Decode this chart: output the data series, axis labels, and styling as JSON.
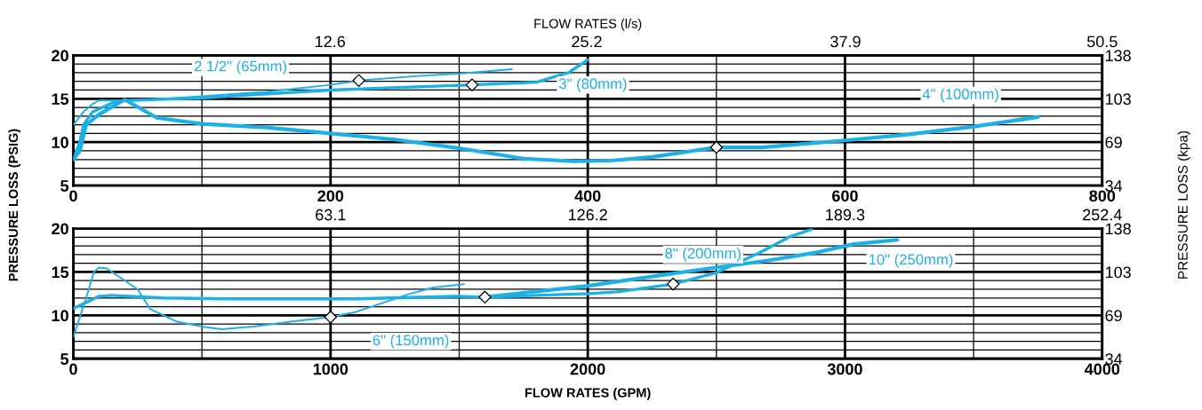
{
  "chart_data": [
    {
      "type": "line",
      "ylabel": "PRESSURE LOSS (PSIG)",
      "x2label": "FLOW RATES (l/s)",
      "grid": true,
      "legend": false,
      "marker": "none",
      "xlim": [
        0,
        800
      ],
      "xticks": [
        0,
        {
          "value": 100,
          "label": null
        },
        200,
        {
          "value": 300,
          "label": null
        },
        400,
        {
          "value": 500,
          "label": null
        },
        600,
        {
          "value": 700,
          "label": null
        },
        800
      ],
      "ylim": [
        5,
        20
      ],
      "yticks": [
        5,
        {
          "value": 6,
          "label": null
        },
        {
          "value": 7,
          "label": null
        },
        {
          "value": 8,
          "label": null
        },
        {
          "value": 9,
          "label": null
        },
        10,
        {
          "value": 11,
          "label": null
        },
        {
          "value": 12,
          "label": null
        },
        {
          "value": 13,
          "label": null
        },
        {
          "value": 14,
          "label": null
        },
        15,
        {
          "value": 16,
          "label": null
        },
        {
          "value": 17,
          "label": null
        },
        {
          "value": 18,
          "label": null
        },
        {
          "value": 19,
          "label": null
        },
        20
      ],
      "x2lim": [
        0,
        50.5
      ],
      "x2ticks": [
        12.6,
        25.2,
        37.9,
        50.5
      ],
      "y2lim": [
        34.5,
        137.9
      ],
      "y2ticks": [
        {
          "value": 34.5,
          "label": "34"
        },
        69,
        {
          "value": 103.4,
          "label": "103"
        },
        {
          "value": 137.9,
          "label": "138"
        }
      ],
      "series": [
        {
          "name": "2 1/2\" (65mm)",
          "color": "#1ab0e8",
          "x": [
            0,
            8,
            15,
            20,
            30,
            60,
            100,
            150,
            200,
            222,
            266,
            300,
            341
          ],
          "values": [
            12,
            13.5,
            14.4,
            14.8,
            14.8,
            14.9,
            15.3,
            15.8,
            16.6,
            17.1,
            17.6,
            17.9,
            18.4
          ]
        },
        {
          "name": "3\" (80mm)",
          "color": "#1ab0e8",
          "x": [
            0,
            5,
            8,
            15,
            30,
            40,
            100,
            200,
            310,
            360,
            385,
            400
          ],
          "values": [
            8,
            10,
            12,
            13.5,
            14.5,
            14.8,
            15.1,
            16,
            16.6,
            16.9,
            18,
            19.5
          ]
        },
        {
          "name": "4\" (100mm)",
          "color": "#1ab0e8",
          "x": [
            0,
            5,
            10,
            20,
            40,
            65,
            100,
            150,
            200,
            250,
            300,
            350,
            390,
            420,
            450,
            500,
            535,
            600,
            650,
            700,
            750
          ],
          "values": [
            8,
            9,
            12,
            13.2,
            14.9,
            12.8,
            12.1,
            11.7,
            11,
            10.3,
            9.3,
            8.1,
            7.8,
            7.9,
            8.3,
            9.4,
            9.4,
            10.2,
            10.9,
            11.8,
            12.9
          ]
        },
        {
          "type": "scatter",
          "marker": "diamond",
          "color": "#ffffff",
          "x": [
            222,
            310,
            500
          ],
          "values": [
            17.1,
            16.6,
            9.4
          ]
        }
      ]
    },
    {
      "type": "line",
      "xlabel": "FLOW RATES (GPM)",
      "y2label": "PRESSURE LOSS (kpa)",
      "grid": true,
      "legend": false,
      "marker": "none",
      "xlim": [
        0,
        4000
      ],
      "xticks": [
        0,
        {
          "value": 500,
          "label": null
        },
        1000,
        {
          "value": 1500,
          "label": null
        },
        2000,
        {
          "value": 2500,
          "label": null
        },
        3000,
        {
          "value": 3500,
          "label": null
        },
        4000
      ],
      "ylim": [
        5,
        20
      ],
      "yticks": [
        5,
        {
          "value": 6,
          "label": null
        },
        {
          "value": 7,
          "label": null
        },
        {
          "value": 8,
          "label": null
        },
        {
          "value": 9,
          "label": null
        },
        10,
        {
          "value": 11,
          "label": null
        },
        {
          "value": 12,
          "label": null
        },
        {
          "value": 13,
          "label": null
        },
        {
          "value": 14,
          "label": null
        },
        15,
        {
          "value": 16,
          "label": null
        },
        {
          "value": 17,
          "label": null
        },
        {
          "value": 18,
          "label": null
        },
        {
          "value": 19,
          "label": null
        },
        20
      ],
      "x2lim": [
        0,
        252.4
      ],
      "x2ticks": [
        63.1,
        126.2,
        189.3,
        252.4
      ],
      "y2lim": [
        34.5,
        137.9
      ],
      "y2ticks": [
        {
          "value": 34.5,
          "label": "34"
        },
        69,
        {
          "value": 103.4,
          "label": "103"
        },
        {
          "value": 137.9,
          "label": "138"
        }
      ],
      "series": [
        {
          "name": "6\" (150mm)",
          "color": "#1ab0e8",
          "x": [
            0,
            50,
            80,
            100,
            130,
            250,
            300,
            400,
            500,
            576,
            700,
            850,
            1000,
            1100,
            1200,
            1300,
            1400,
            1520
          ],
          "values": [
            7.5,
            12,
            15,
            15.5,
            15.4,
            13,
            10.7,
            9.3,
            8.7,
            8.4,
            8.7,
            9.3,
            9.8,
            10.4,
            11.4,
            12.4,
            13.2,
            13.6
          ]
        },
        {
          "name": "8\" (200mm)",
          "color": "#1ab0e8",
          "x": [
            0,
            50,
            100,
            150,
            350,
            600,
            1100,
            1500,
            1600,
            2000,
            2115,
            2332,
            2498,
            2666,
            2789,
            2870
          ],
          "values": [
            10.8,
            11.5,
            12.2,
            12.3,
            12,
            11.9,
            11.9,
            12.2,
            12.1,
            12.5,
            12.7,
            13.6,
            14.9,
            17.2,
            19.1,
            19.9
          ]
        },
        {
          "name": "10\" (250mm)",
          "color": "#1ab0e8",
          "x": [
            1600,
            2000,
            2421,
            2697,
            2881,
            3034,
            3203
          ],
          "values": [
            12.1,
            13.4,
            15.2,
            16.3,
            17.2,
            18.2,
            18.7
          ]
        },
        {
          "type": "scatter",
          "marker": "diamond",
          "color": "#ffffff",
          "x": [
            1000,
            1600,
            2332
          ],
          "values": [
            9.8,
            12.1,
            13.6
          ]
        }
      ]
    }
  ]
}
